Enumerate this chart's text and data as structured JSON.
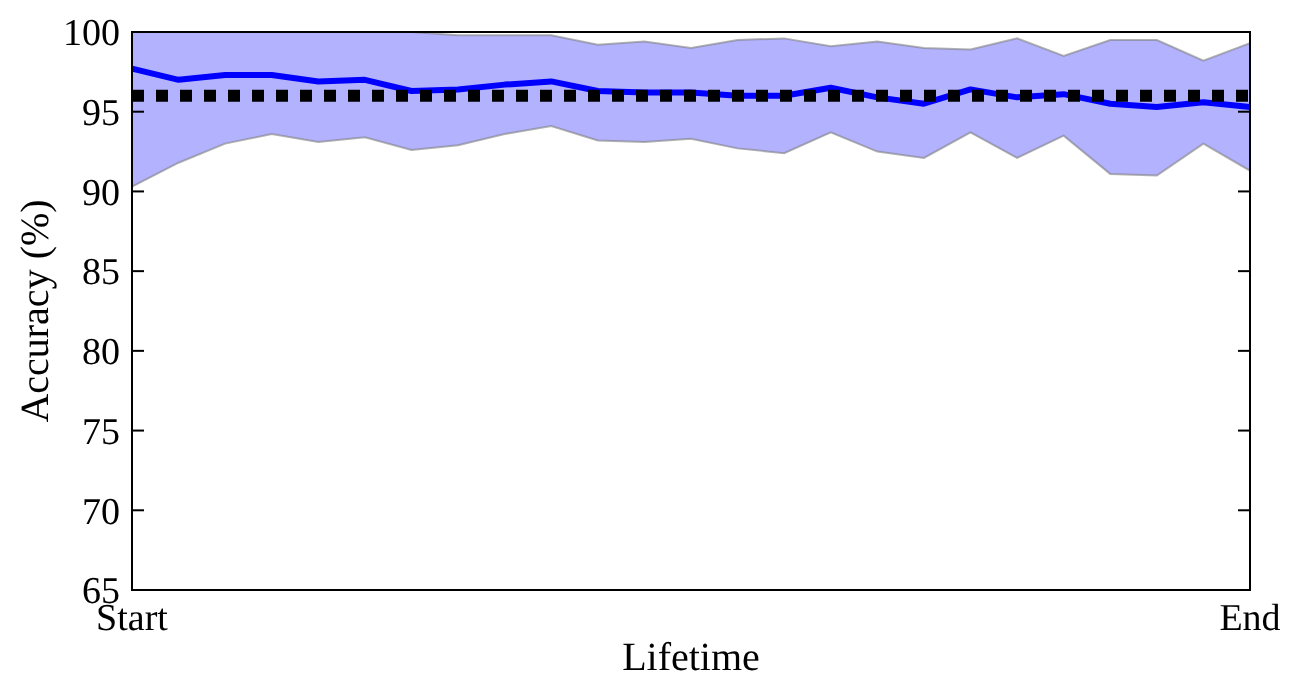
{
  "chart_data": {
    "type": "line",
    "xlabel": "Lifetime",
    "ylabel": "Accuracy (%)",
    "categories": [
      "Start",
      null,
      null,
      null,
      null,
      null,
      null,
      null,
      null,
      null,
      null,
      null,
      null,
      null,
      null,
      null,
      null,
      null,
      null,
      null,
      null,
      null,
      null,
      null,
      "End"
    ],
    "series": [
      {
        "color": "#0000ff",
        "values": [
          97.7,
          97.0,
          97.3,
          97.3,
          96.9,
          97.0,
          96.3,
          96.4,
          96.7,
          96.9,
          96.3,
          96.2,
          96.2,
          96.0,
          96.0,
          96.5,
          95.9,
          95.5,
          96.4,
          95.9,
          96.1,
          95.5,
          95.3,
          95.6,
          95.3
        ],
        "lower": [
          90.3,
          91.8,
          93.0,
          93.6,
          93.1,
          93.4,
          92.6,
          92.9,
          93.6,
          94.1,
          93.2,
          93.1,
          93.3,
          92.7,
          92.4,
          93.7,
          92.5,
          92.1,
          93.7,
          92.1,
          93.5,
          91.1,
          91.0,
          93.0,
          91.3
        ],
        "upper": [
          100,
          100,
          100,
          100,
          100,
          100,
          100,
          99.8,
          99.8,
          99.8,
          99.2,
          99.4,
          99.0,
          99.5,
          99.6,
          99.1,
          99.4,
          99.0,
          98.9,
          99.6,
          98.5,
          99.5,
          99.5,
          98.2,
          99.3
        ]
      }
    ],
    "ref_lines": [
      {
        "axis": "y",
        "value": 96,
        "color": "#000000",
        "line_style": "dotted"
      }
    ],
    "ylim": [
      65,
      100
    ],
    "yticks": [
      65,
      70,
      75,
      80,
      85,
      90,
      95,
      100
    ]
  }
}
